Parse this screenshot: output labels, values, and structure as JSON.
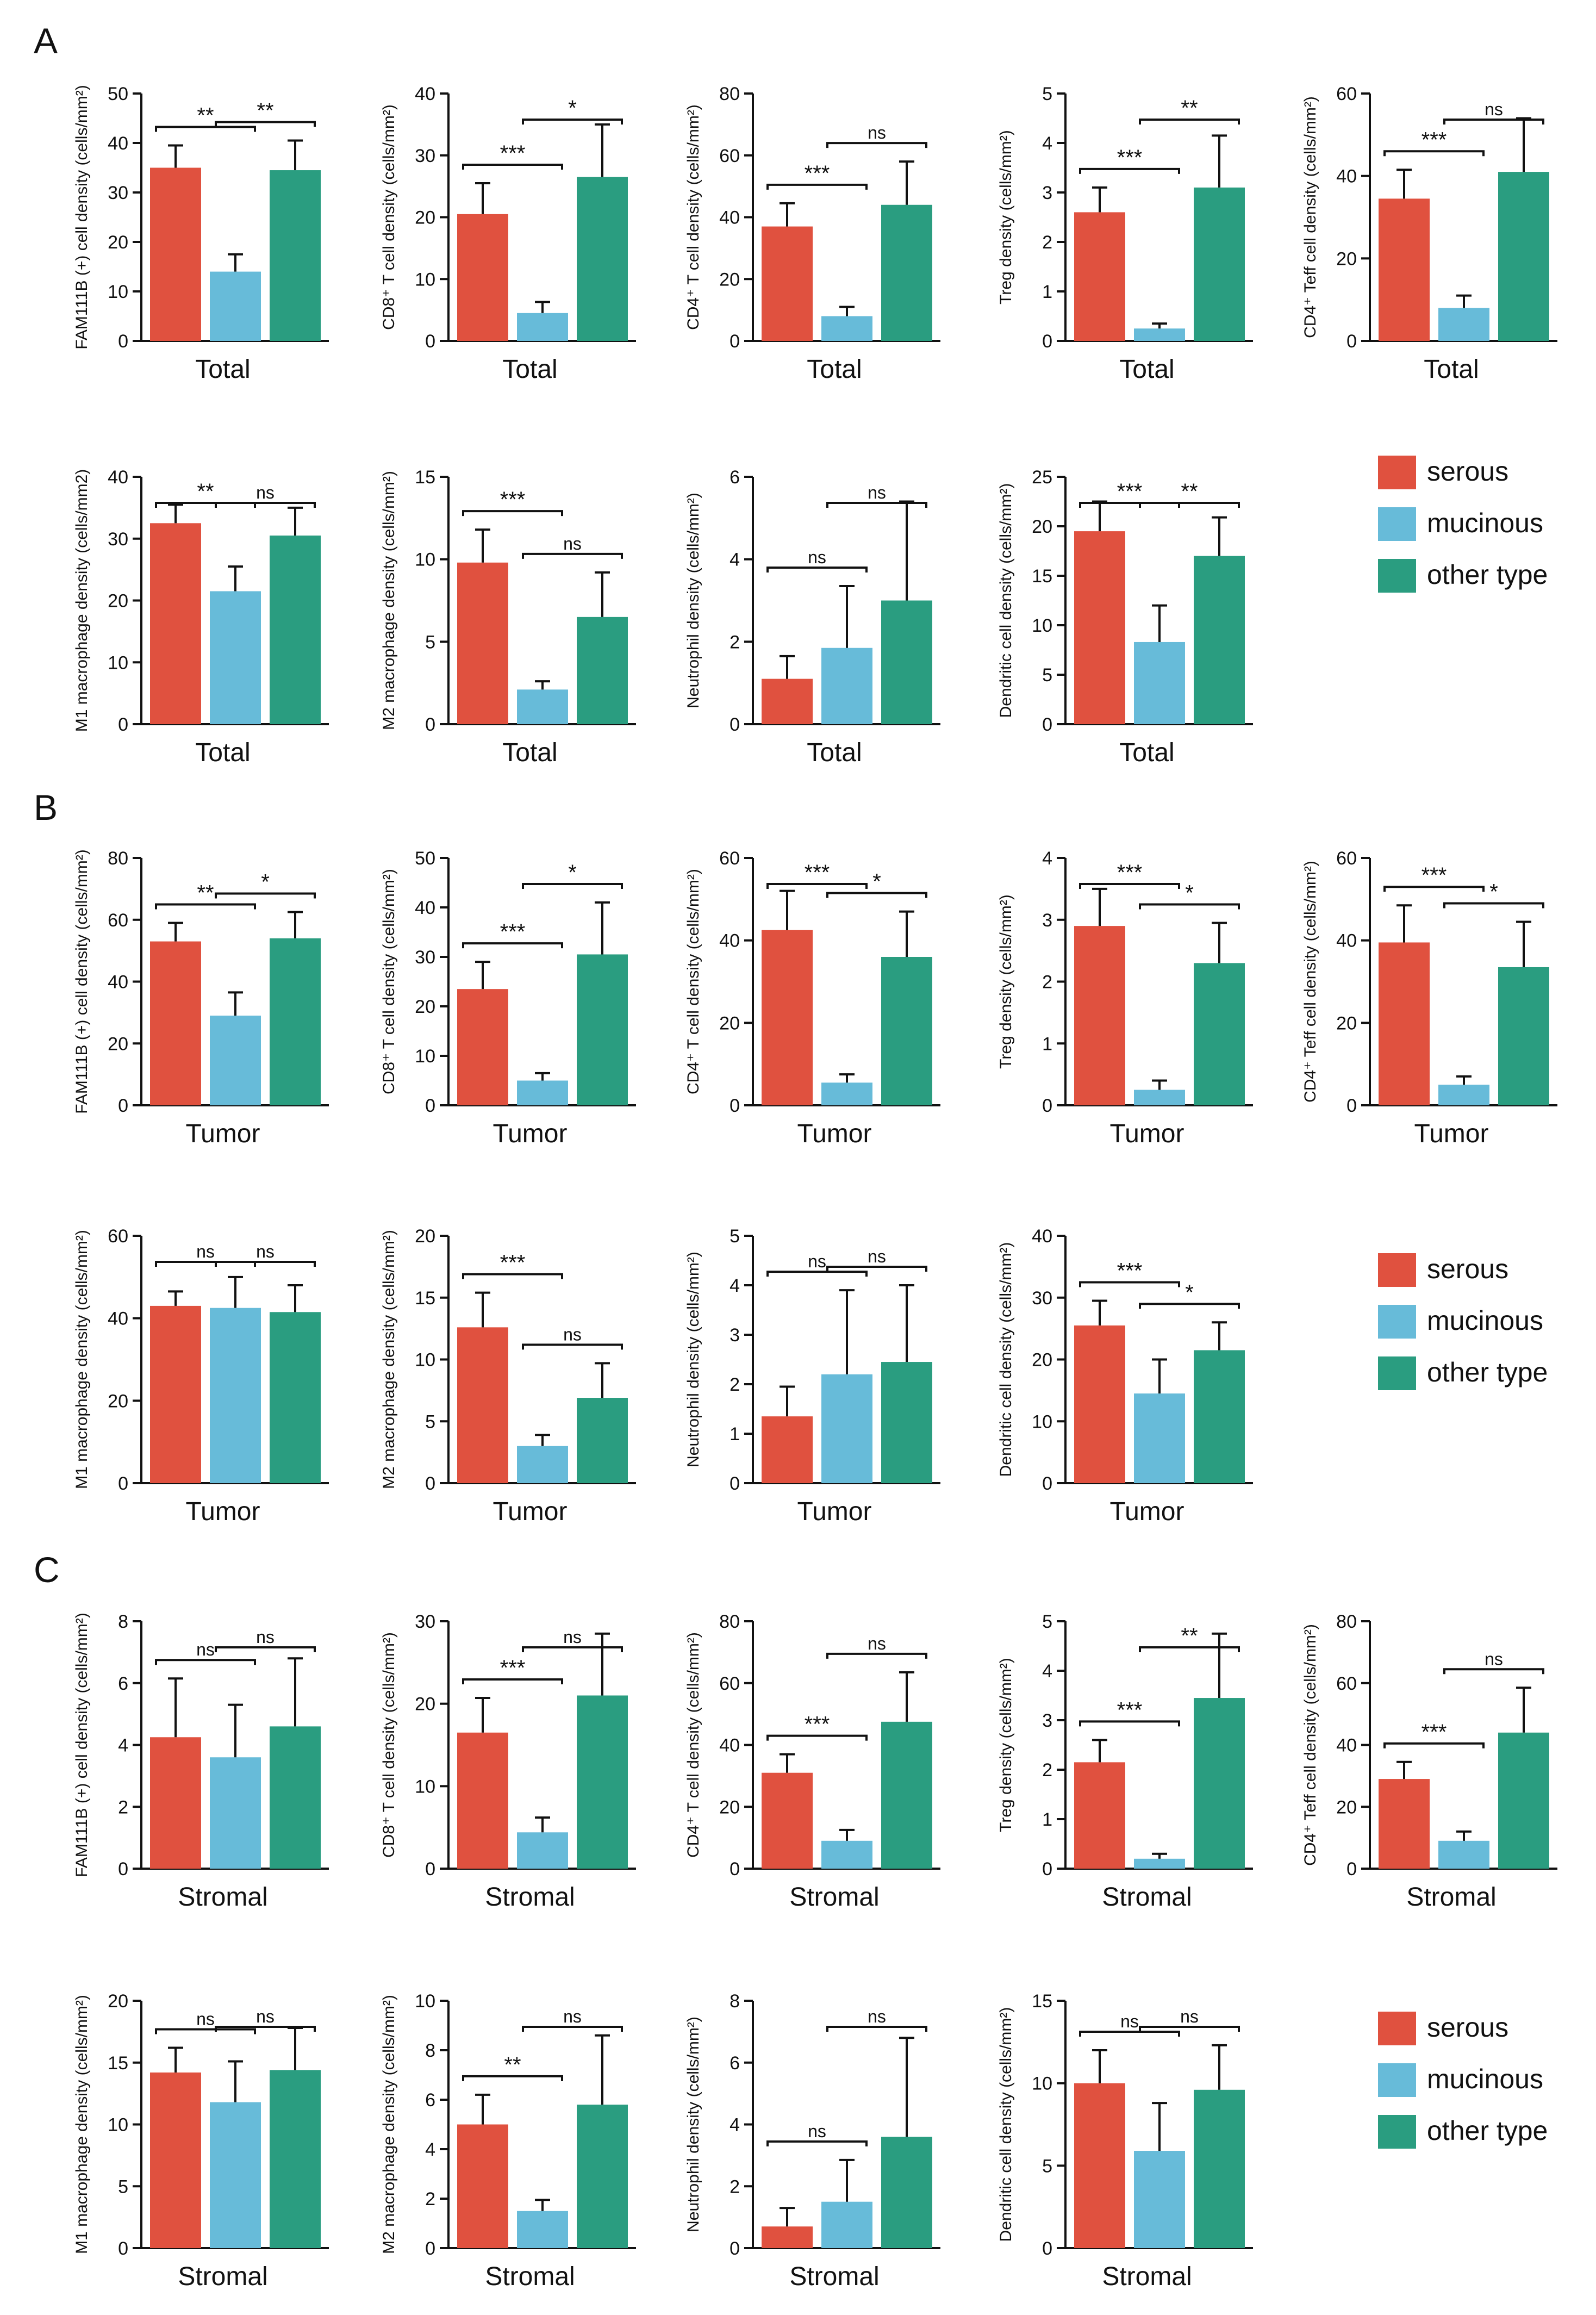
{
  "colors": {
    "serous": "#e0513f",
    "mucinous": "#67bbd9",
    "other": "#2a9d80",
    "axis": "#111111"
  },
  "panel_labels": [
    "A",
    "B",
    "C"
  ],
  "legend": [
    "serous",
    "mucinous",
    "other type"
  ],
  "chart_data": [
    {
      "panel": "A",
      "type": "bar",
      "title": "Total",
      "ylabel": "FAM111B (+) cell density (cells/mm²)",
      "ylim": [
        0,
        50
      ],
      "yticks": [
        0,
        10,
        20,
        30,
        40,
        50
      ],
      "categories": [
        "serous",
        "mucinous",
        "other type"
      ],
      "values": [
        35,
        14,
        34.5
      ],
      "errors": [
        4.5,
        3.5,
        6
      ],
      "annotations": [
        {
          "pair": [
            0,
            1
          ],
          "label": "**"
        },
        {
          "pair": [
            1,
            2
          ],
          "label": "**"
        }
      ]
    },
    {
      "panel": "A",
      "type": "bar",
      "title": "Total",
      "ylabel": "CD8⁺ T cell density (cells/mm²)",
      "ylim": [
        0,
        40
      ],
      "yticks": [
        0,
        10,
        20,
        30,
        40
      ],
      "categories": [
        "serous",
        "mucinous",
        "other type"
      ],
      "values": [
        20.5,
        4.5,
        26.5
      ],
      "errors": [
        5,
        1.8,
        8.5
      ],
      "annotations": [
        {
          "pair": [
            0,
            1
          ],
          "label": "***"
        },
        {
          "pair": [
            1,
            2
          ],
          "label": "*"
        }
      ]
    },
    {
      "panel": "A",
      "type": "bar",
      "title": "Total",
      "ylabel": "CD4⁺ T cell density (cells/mm²)",
      "ylim": [
        0,
        80
      ],
      "yticks": [
        0,
        20,
        40,
        60,
        80
      ],
      "categories": [
        "serous",
        "mucinous",
        "other type"
      ],
      "values": [
        37,
        8,
        44
      ],
      "errors": [
        7.5,
        3,
        14
      ],
      "annotations": [
        {
          "pair": [
            0,
            1
          ],
          "label": "***"
        },
        {
          "pair": [
            1,
            2
          ],
          "label": "ns"
        }
      ]
    },
    {
      "panel": "A",
      "type": "bar",
      "title": "Total",
      "ylabel": "Treg density (cells/mm²)",
      "ylim": [
        0,
        5
      ],
      "yticks": [
        0,
        1,
        2,
        3,
        4,
        5
      ],
      "categories": [
        "serous",
        "mucinous",
        "other type"
      ],
      "values": [
        2.6,
        0.25,
        3.1
      ],
      "errors": [
        0.5,
        0.1,
        1.05
      ],
      "annotations": [
        {
          "pair": [
            0,
            1
          ],
          "label": "***"
        },
        {
          "pair": [
            1,
            2
          ],
          "label": "**"
        }
      ]
    },
    {
      "panel": "A",
      "type": "bar",
      "title": "Total",
      "ylabel": "CD4⁺ Teff cell density (cells/mm²)",
      "ylim": [
        0,
        60
      ],
      "yticks": [
        0,
        20,
        40,
        60
      ],
      "categories": [
        "serous",
        "mucinous",
        "other type"
      ],
      "values": [
        34.5,
        8,
        41
      ],
      "errors": [
        7,
        3,
        13
      ],
      "annotations": [
        {
          "pair": [
            0,
            1
          ],
          "label": "***"
        },
        {
          "pair": [
            1,
            2
          ],
          "label": "ns"
        }
      ]
    },
    {
      "panel": "A",
      "type": "bar",
      "title": "Total",
      "ylabel": "M1 macrophage density (cells/mm2)",
      "ylim": [
        0,
        40
      ],
      "yticks": [
        0,
        10,
        20,
        30,
        40
      ],
      "categories": [
        "serous",
        "mucinous",
        "other type"
      ],
      "values": [
        32.5,
        21.5,
        30.5
      ],
      "errors": [
        3,
        4,
        4.5
      ],
      "annotations": [
        {
          "pair": [
            0,
            1
          ],
          "label": "**"
        },
        {
          "pair": [
            1,
            2
          ],
          "label": "ns"
        }
      ]
    },
    {
      "panel": "A",
      "type": "bar",
      "title": "Total",
      "ylabel": "M2 macrophage density (cells/mm²)",
      "ylim": [
        0,
        15
      ],
      "yticks": [
        0,
        5,
        10,
        15
      ],
      "categories": [
        "serous",
        "mucinous",
        "other type"
      ],
      "values": [
        9.8,
        2.1,
        6.5
      ],
      "errors": [
        2,
        0.5,
        2.7
      ],
      "annotations": [
        {
          "pair": [
            0,
            1
          ],
          "label": "***"
        },
        {
          "pair": [
            1,
            2
          ],
          "label": "ns"
        }
      ]
    },
    {
      "panel": "A",
      "type": "bar",
      "title": "Total",
      "ylabel": "Neutrophil density (cells/mm²)",
      "ylim": [
        0,
        6
      ],
      "yticks": [
        0,
        2,
        4,
        6
      ],
      "categories": [
        "serous",
        "mucinous",
        "other type"
      ],
      "values": [
        1.1,
        1.85,
        3
      ],
      "errors": [
        0.55,
        1.5,
        2.4
      ],
      "annotations": [
        {
          "pair": [
            0,
            1
          ],
          "label": "ns"
        },
        {
          "pair": [
            1,
            2
          ],
          "label": "ns"
        }
      ]
    },
    {
      "panel": "A",
      "type": "bar",
      "title": "Total",
      "ylabel": "Dendritic cell density (cells/mm²)",
      "ylim": [
        0,
        25
      ],
      "yticks": [
        0,
        5,
        10,
        15,
        20,
        25
      ],
      "categories": [
        "serous",
        "mucinous",
        "other type"
      ],
      "values": [
        19.5,
        8.3,
        17
      ],
      "errors": [
        3,
        3.7,
        3.9
      ],
      "annotations": [
        {
          "pair": [
            0,
            1
          ],
          "label": "***"
        },
        {
          "pair": [
            1,
            2
          ],
          "label": "**"
        }
      ]
    },
    {
      "panel": "B",
      "type": "bar",
      "title": "Tumor",
      "ylabel": "FAM111B (+) cell density (cells/mm²)",
      "ylim": [
        0,
        80
      ],
      "yticks": [
        0,
        20,
        40,
        60,
        80
      ],
      "categories": [
        "serous",
        "mucinous",
        "other type"
      ],
      "values": [
        53,
        29,
        54
      ],
      "errors": [
        6,
        7.5,
        8.5
      ],
      "annotations": [
        {
          "pair": [
            0,
            1
          ],
          "label": "**"
        },
        {
          "pair": [
            1,
            2
          ],
          "label": "*"
        }
      ]
    },
    {
      "panel": "B",
      "type": "bar",
      "title": "Tumor",
      "ylabel": "CD8⁺ T cell density (cells/mm²)",
      "ylim": [
        0,
        50
      ],
      "yticks": [
        0,
        10,
        20,
        30,
        40,
        50
      ],
      "categories": [
        "serous",
        "mucinous",
        "other type"
      ],
      "values": [
        23.5,
        5,
        30.5
      ],
      "errors": [
        5.5,
        1.5,
        10.5
      ],
      "annotations": [
        {
          "pair": [
            0,
            1
          ],
          "label": "***"
        },
        {
          "pair": [
            1,
            2
          ],
          "label": "*"
        }
      ]
    },
    {
      "panel": "B",
      "type": "bar",
      "title": "Tumor",
      "ylabel": "CD4⁺ T cell density (cells/mm²)",
      "ylim": [
        0,
        60
      ],
      "yticks": [
        0,
        20,
        40,
        60
      ],
      "categories": [
        "serous",
        "mucinous",
        "other type"
      ],
      "values": [
        42.5,
        5.5,
        36
      ],
      "errors": [
        9.5,
        2,
        11
      ],
      "annotations": [
        {
          "pair": [
            0,
            1
          ],
          "label": "***"
        },
        {
          "pair": [
            1,
            2
          ],
          "label": "*"
        }
      ]
    },
    {
      "panel": "B",
      "type": "bar",
      "title": "Tumor",
      "ylabel": "Treg density (cells/mm²)",
      "ylim": [
        0,
        4
      ],
      "yticks": [
        0,
        1,
        2,
        3,
        4
      ],
      "categories": [
        "serous",
        "mucinous",
        "other type"
      ],
      "values": [
        2.9,
        0.25,
        2.3
      ],
      "errors": [
        0.6,
        0.15,
        0.65
      ],
      "annotations": [
        {
          "pair": [
            0,
            1
          ],
          "label": "***"
        },
        {
          "pair": [
            1,
            2
          ],
          "label": "*"
        }
      ]
    },
    {
      "panel": "B",
      "type": "bar",
      "title": "Tumor",
      "ylabel": "CD4⁺ Teff cell density (cells/mm²)",
      "ylim": [
        0,
        60
      ],
      "yticks": [
        0,
        20,
        40,
        60
      ],
      "categories": [
        "serous",
        "mucinous",
        "other type"
      ],
      "values": [
        39.5,
        5,
        33.5
      ],
      "errors": [
        9,
        2,
        11
      ],
      "annotations": [
        {
          "pair": [
            0,
            1
          ],
          "label": "***"
        },
        {
          "pair": [
            1,
            2
          ],
          "label": "*"
        }
      ]
    },
    {
      "panel": "B",
      "type": "bar",
      "title": "Tumor",
      "ylabel": "M1 macrophage density (cells/mm²)",
      "ylim": [
        0,
        60
      ],
      "yticks": [
        0,
        20,
        40,
        60
      ],
      "categories": [
        "serous",
        "mucinous",
        "other type"
      ],
      "values": [
        43,
        42.5,
        41.5
      ],
      "errors": [
        3.5,
        7.5,
        6.5
      ],
      "annotations": [
        {
          "pair": [
            0,
            1
          ],
          "label": "ns"
        },
        {
          "pair": [
            1,
            2
          ],
          "label": "ns"
        }
      ]
    },
    {
      "panel": "B",
      "type": "bar",
      "title": "Tumor",
      "ylabel": "M2 macrophage density (cells/mm²)",
      "ylim": [
        0,
        20
      ],
      "yticks": [
        0,
        5,
        10,
        15,
        20
      ],
      "categories": [
        "serous",
        "mucinous",
        "other type"
      ],
      "values": [
        12.6,
        3,
        6.9
      ],
      "errors": [
        2.8,
        0.9,
        2.8
      ],
      "annotations": [
        {
          "pair": [
            0,
            1
          ],
          "label": "***"
        },
        {
          "pair": [
            1,
            2
          ],
          "label": "ns"
        }
      ]
    },
    {
      "panel": "B",
      "type": "bar",
      "title": "Tumor",
      "ylabel": "Neutrophil density (cells/mm²)",
      "ylim": [
        0,
        5
      ],
      "yticks": [
        0,
        1,
        2,
        3,
        4,
        5
      ],
      "categories": [
        "serous",
        "mucinous",
        "other type"
      ],
      "values": [
        1.35,
        2.2,
        2.45
      ],
      "errors": [
        0.6,
        1.7,
        1.55
      ],
      "annotations": [
        {
          "pair": [
            0,
            1
          ],
          "label": "ns"
        },
        {
          "pair": [
            1,
            2
          ],
          "label": "ns"
        }
      ]
    },
    {
      "panel": "B",
      "type": "bar",
      "title": "Tumor",
      "ylabel": "Dendritic cell density (cells/mm²)",
      "ylim": [
        0,
        40
      ],
      "yticks": [
        0,
        10,
        20,
        30,
        40
      ],
      "categories": [
        "serous",
        "mucinous",
        "other type"
      ],
      "values": [
        25.5,
        14.5,
        21.5
      ],
      "errors": [
        4,
        5.5,
        4.5
      ],
      "annotations": [
        {
          "pair": [
            0,
            1
          ],
          "label": "***"
        },
        {
          "pair": [
            1,
            2
          ],
          "label": "*"
        }
      ]
    },
    {
      "panel": "C",
      "type": "bar",
      "title": "Stromal",
      "ylabel": "FAM111B (+) cell density (cells/mm²)",
      "ylim": [
        0,
        8
      ],
      "yticks": [
        0,
        2,
        4,
        6,
        8
      ],
      "categories": [
        "serous",
        "mucinous",
        "other type"
      ],
      "values": [
        4.25,
        3.6,
        4.6
      ],
      "errors": [
        1.9,
        1.7,
        2.2
      ],
      "annotations": [
        {
          "pair": [
            0,
            1
          ],
          "label": "ns"
        },
        {
          "pair": [
            1,
            2
          ],
          "label": "ns"
        }
      ]
    },
    {
      "panel": "C",
      "type": "bar",
      "title": "Stromal",
      "ylabel": "CD8⁺ T cell density (cells/mm²)",
      "ylim": [
        0,
        30
      ],
      "yticks": [
        0,
        10,
        20,
        30
      ],
      "categories": [
        "serous",
        "mucinous",
        "other type"
      ],
      "values": [
        16.5,
        4.4,
        21
      ],
      "errors": [
        4.2,
        1.8,
        7.5
      ],
      "annotations": [
        {
          "pair": [
            0,
            1
          ],
          "label": "***"
        },
        {
          "pair": [
            1,
            2
          ],
          "label": "ns"
        }
      ]
    },
    {
      "panel": "C",
      "type": "bar",
      "title": "Stromal",
      "ylabel": "CD4⁺ T cell density (cells/mm²)",
      "ylim": [
        0,
        80
      ],
      "yticks": [
        0,
        20,
        40,
        60,
        80
      ],
      "categories": [
        "serous",
        "mucinous",
        "other type"
      ],
      "values": [
        31,
        9,
        47.5
      ],
      "errors": [
        6,
        3.5,
        16
      ],
      "annotations": [
        {
          "pair": [
            0,
            1
          ],
          "label": "***"
        },
        {
          "pair": [
            1,
            2
          ],
          "label": "ns"
        }
      ]
    },
    {
      "panel": "C",
      "type": "bar",
      "title": "Stromal",
      "ylabel": "Treg density (cells/mm²)",
      "ylim": [
        0,
        5
      ],
      "yticks": [
        0,
        1,
        2,
        3,
        4,
        5
      ],
      "categories": [
        "serous",
        "mucinous",
        "other type"
      ],
      "values": [
        2.15,
        0.2,
        3.45
      ],
      "errors": [
        0.45,
        0.1,
        1.3
      ],
      "annotations": [
        {
          "pair": [
            0,
            1
          ],
          "label": "***"
        },
        {
          "pair": [
            1,
            2
          ],
          "label": "**"
        }
      ]
    },
    {
      "panel": "C",
      "type": "bar",
      "title": "Stromal",
      "ylabel": "CD4⁺ Teff cell density (cells/mm²)",
      "ylim": [
        0,
        80
      ],
      "yticks": [
        0,
        20,
        40,
        60,
        80
      ],
      "categories": [
        "serous",
        "mucinous",
        "other type"
      ],
      "values": [
        29,
        9,
        44
      ],
      "errors": [
        5.5,
        3,
        14.5
      ],
      "annotations": [
        {
          "pair": [
            0,
            1
          ],
          "label": "***"
        },
        {
          "pair": [
            1,
            2
          ],
          "label": "ns"
        }
      ]
    },
    {
      "panel": "C",
      "type": "bar",
      "title": "Stromal",
      "ylabel": "M1 macrophage density (cells/mm²)",
      "ylim": [
        0,
        20
      ],
      "yticks": [
        0,
        5,
        10,
        15,
        20
      ],
      "categories": [
        "serous",
        "mucinous",
        "other type"
      ],
      "values": [
        14.2,
        11.8,
        14.4
      ],
      "errors": [
        2,
        3.3,
        3.4
      ],
      "annotations": [
        {
          "pair": [
            0,
            1
          ],
          "label": "ns"
        },
        {
          "pair": [
            1,
            2
          ],
          "label": "ns"
        }
      ]
    },
    {
      "panel": "C",
      "type": "bar",
      "title": "Stromal",
      "ylabel": "M2 macrophage density (cells/mm²)",
      "ylim": [
        0,
        10
      ],
      "yticks": [
        0,
        2,
        4,
        6,
        8,
        10
      ],
      "categories": [
        "serous",
        "mucinous",
        "other type"
      ],
      "values": [
        5,
        1.5,
        5.8
      ],
      "errors": [
        1.2,
        0.45,
        2.8
      ],
      "annotations": [
        {
          "pair": [
            0,
            1
          ],
          "label": "**"
        },
        {
          "pair": [
            1,
            2
          ],
          "label": "ns"
        }
      ]
    },
    {
      "panel": "C",
      "type": "bar",
      "title": "Stromal",
      "ylabel": "Neutrophil density (cells/mm²)",
      "ylim": [
        0,
        8
      ],
      "yticks": [
        0,
        2,
        4,
        6,
        8
      ],
      "categories": [
        "serous",
        "mucinous",
        "other type"
      ],
      "values": [
        0.7,
        1.5,
        3.6
      ],
      "errors": [
        0.6,
        1.35,
        3.2
      ],
      "annotations": [
        {
          "pair": [
            0,
            1
          ],
          "label": "ns"
        },
        {
          "pair": [
            1,
            2
          ],
          "label": "ns"
        }
      ]
    },
    {
      "panel": "C",
      "type": "bar",
      "title": "Stromal",
      "ylabel": "Dendritic cell density (cells/mm²)",
      "ylim": [
        0,
        15
      ],
      "yticks": [
        0,
        5,
        10,
        15
      ],
      "categories": [
        "serous",
        "mucinous",
        "other type"
      ],
      "values": [
        10,
        5.9,
        9.6
      ],
      "errors": [
        2,
        2.9,
        2.7
      ],
      "annotations": [
        {
          "pair": [
            0,
            1
          ],
          "label": "ns"
        },
        {
          "pair": [
            1,
            2
          ],
          "label": "ns"
        }
      ]
    }
  ]
}
